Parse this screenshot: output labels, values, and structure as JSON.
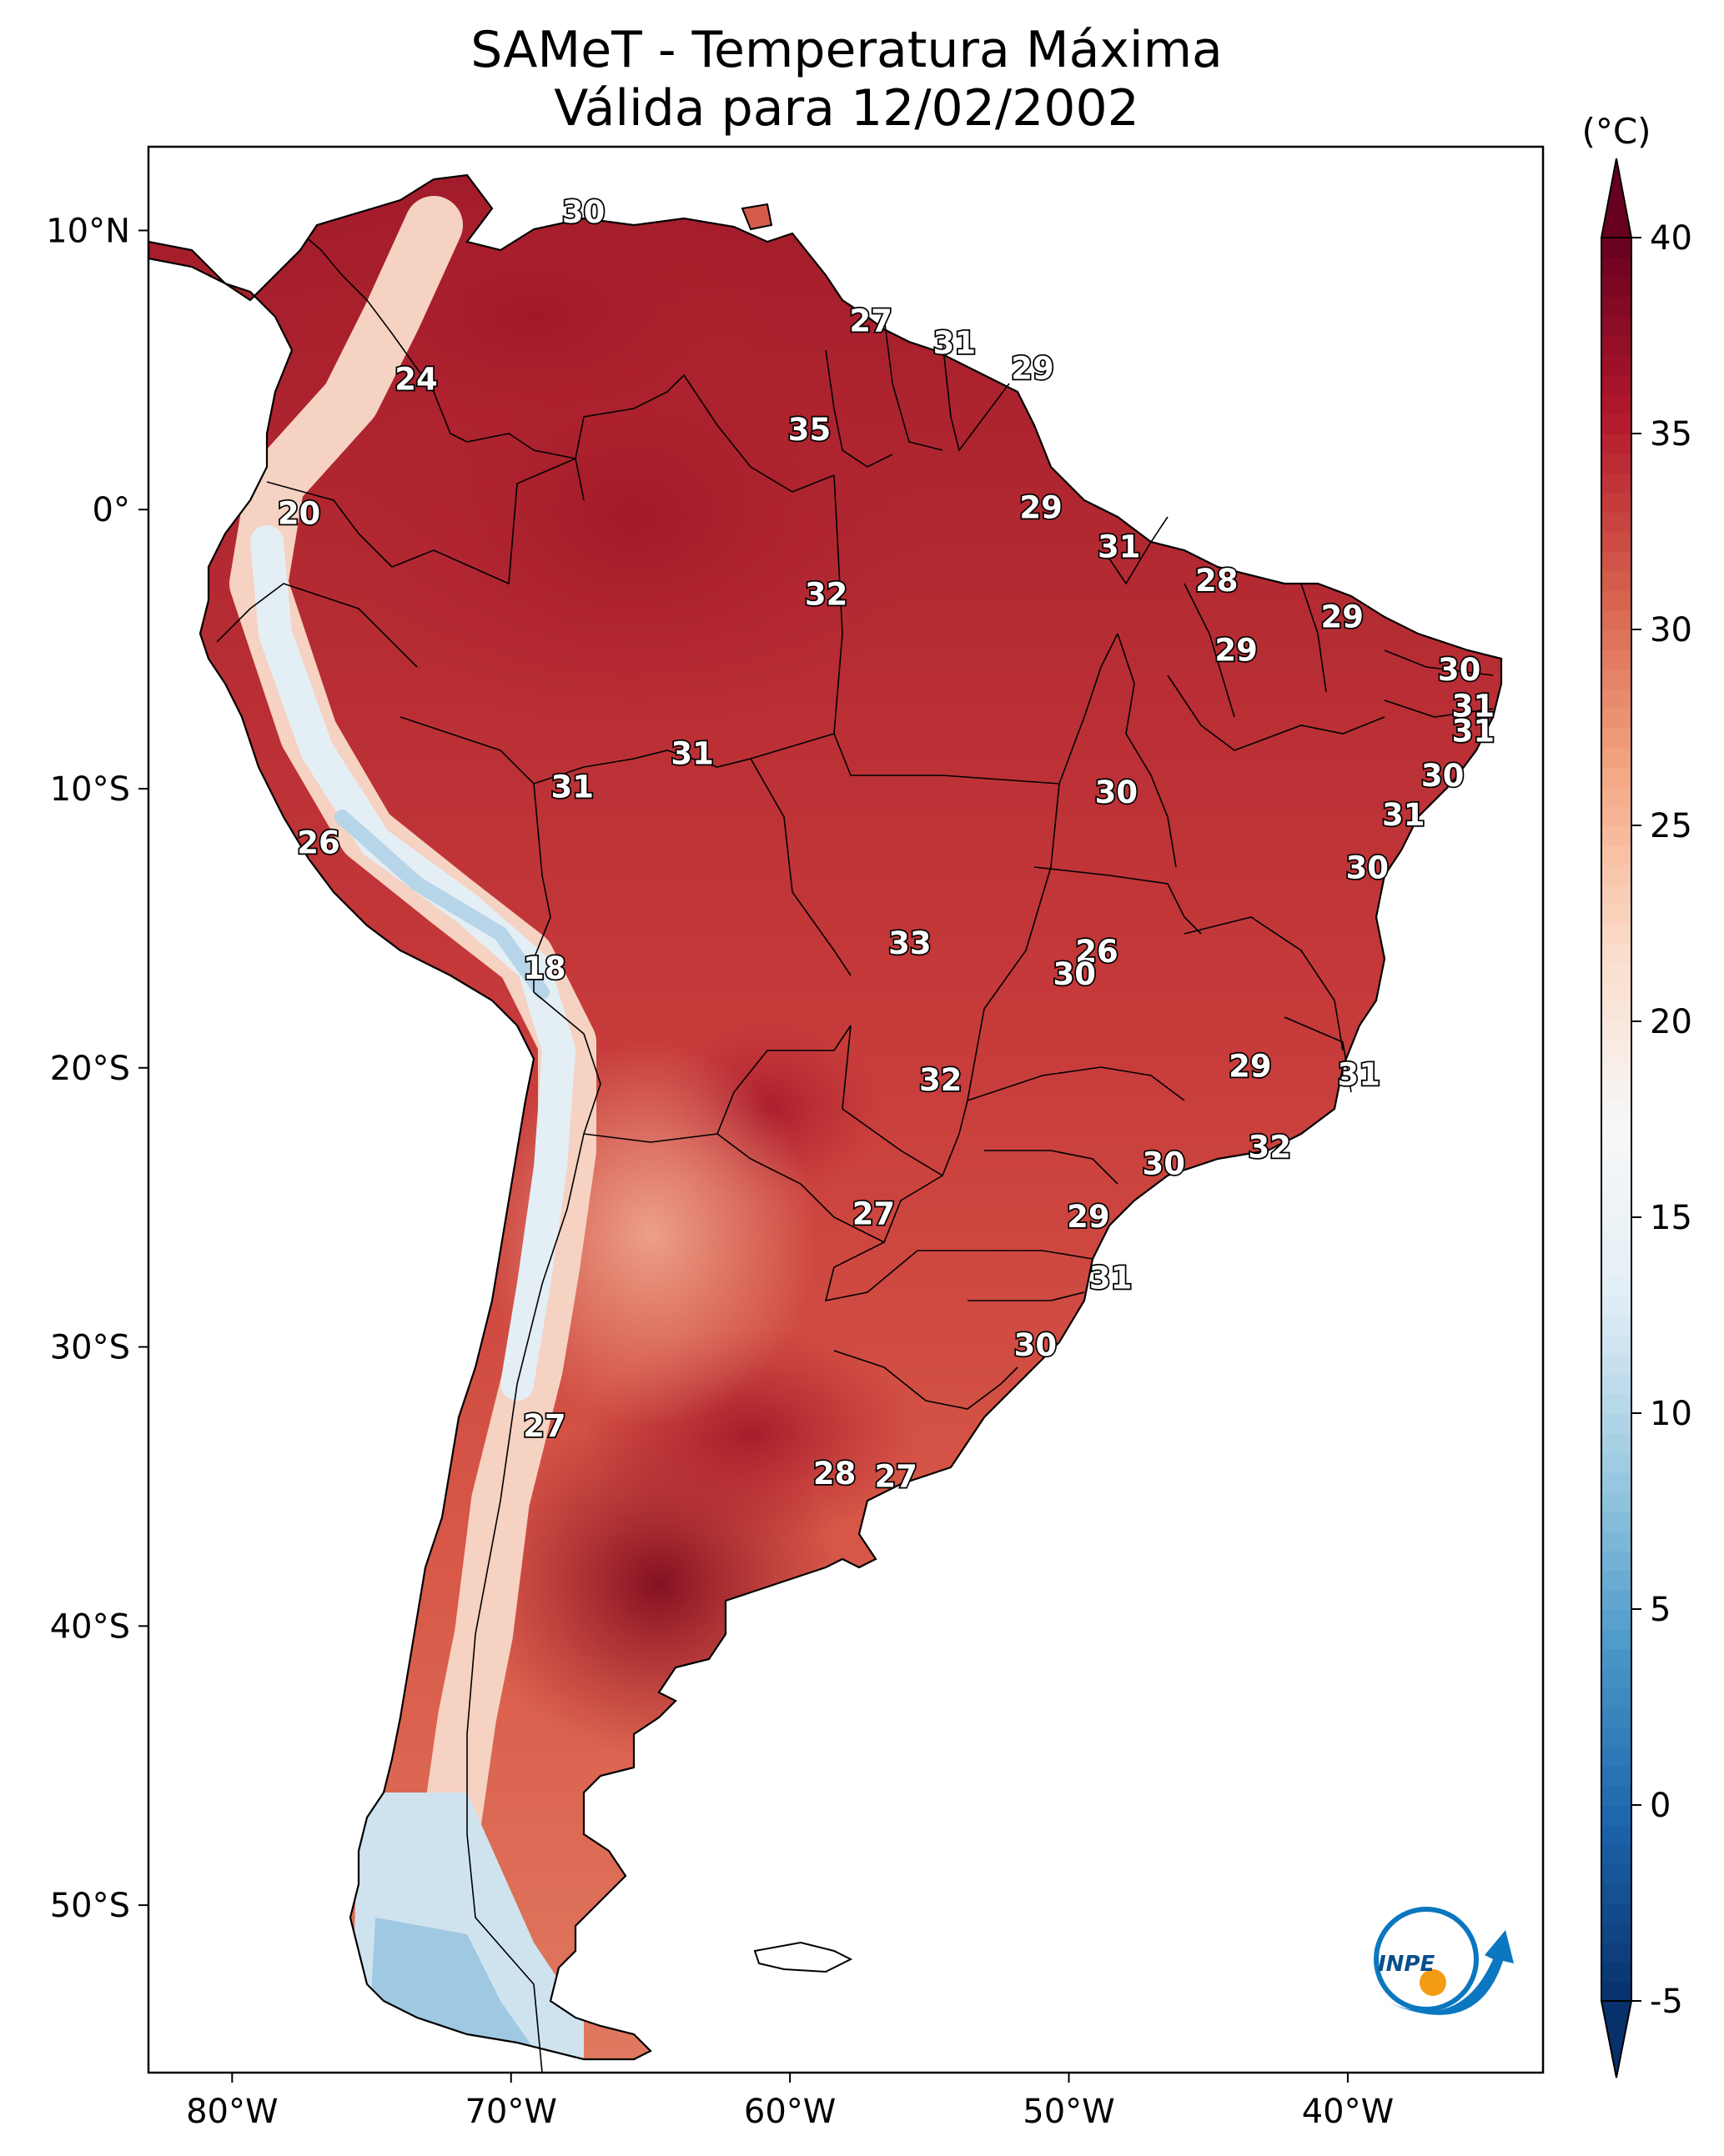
{
  "title": {
    "line1": "SAMeT - Temperatura Máxima",
    "line2": "Válida para 12/02/2002"
  },
  "map": {
    "lon_range": [
      -83,
      -33
    ],
    "lat_range": [
      -56,
      13
    ],
    "lon_ticks": [
      {
        "value": -80,
        "label": "80°W"
      },
      {
        "value": -70,
        "label": "70°W"
      },
      {
        "value": -60,
        "label": "60°W"
      },
      {
        "value": -50,
        "label": "50°W"
      },
      {
        "value": -40,
        "label": "40°W"
      }
    ],
    "lat_ticks": [
      {
        "value": 10,
        "label": "10°N"
      },
      {
        "value": 0,
        "label": "0°"
      },
      {
        "value": -10,
        "label": "10°S"
      },
      {
        "value": -20,
        "label": "20°S"
      },
      {
        "value": -30,
        "label": "30°S"
      },
      {
        "value": -40,
        "label": "40°S"
      },
      {
        "value": -50,
        "label": "50°S"
      }
    ],
    "station_labels": [
      {
        "lon": -67.4,
        "lat": 10.6,
        "text": "30"
      },
      {
        "lon": -57.1,
        "lat": 6.7,
        "text": "27"
      },
      {
        "lon": -54.1,
        "lat": 5.9,
        "text": "31"
      },
      {
        "lon": -51.3,
        "lat": 5.0,
        "text": "29"
      },
      {
        "lon": -73.4,
        "lat": 4.6,
        "text": "24"
      },
      {
        "lon": -59.3,
        "lat": 2.8,
        "text": "35"
      },
      {
        "lon": -77.6,
        "lat": -0.2,
        "text": "20"
      },
      {
        "lon": -51.0,
        "lat": 0.0,
        "text": "29"
      },
      {
        "lon": -48.2,
        "lat": -1.4,
        "text": "31"
      },
      {
        "lon": -44.7,
        "lat": -2.6,
        "text": "28"
      },
      {
        "lon": -58.7,
        "lat": -3.1,
        "text": "32"
      },
      {
        "lon": -40.2,
        "lat": -3.9,
        "text": "29"
      },
      {
        "lon": -44.0,
        "lat": -5.1,
        "text": "29"
      },
      {
        "lon": -36.0,
        "lat": -5.8,
        "text": "30"
      },
      {
        "lon": -35.5,
        "lat": -7.1,
        "text": "31"
      },
      {
        "lon": -35.5,
        "lat": -8.0,
        "text": "31"
      },
      {
        "lon": -63.5,
        "lat": -8.8,
        "text": "31"
      },
      {
        "lon": -36.6,
        "lat": -9.6,
        "text": "30"
      },
      {
        "lon": -67.8,
        "lat": -10.0,
        "text": "31"
      },
      {
        "lon": -48.3,
        "lat": -10.2,
        "text": "30"
      },
      {
        "lon": -38.0,
        "lat": -11.0,
        "text": "31"
      },
      {
        "lon": -76.9,
        "lat": -12.0,
        "text": "26"
      },
      {
        "lon": -39.3,
        "lat": -12.9,
        "text": "30"
      },
      {
        "lon": -49.0,
        "lat": -15.9,
        "text": "26"
      },
      {
        "lon": -55.7,
        "lat": -15.6,
        "text": "33"
      },
      {
        "lon": -49.8,
        "lat": -16.7,
        "text": "30"
      },
      {
        "lon": -68.8,
        "lat": -16.5,
        "text": "18"
      },
      {
        "lon": -43.5,
        "lat": -20.0,
        "text": "29"
      },
      {
        "lon": -39.6,
        "lat": -20.3,
        "text": "31"
      },
      {
        "lon": -54.6,
        "lat": -20.5,
        "text": "32"
      },
      {
        "lon": -42.8,
        "lat": -22.9,
        "text": "32"
      },
      {
        "lon": -46.6,
        "lat": -23.5,
        "text": "30"
      },
      {
        "lon": -57.0,
        "lat": -25.3,
        "text": "27"
      },
      {
        "lon": -49.3,
        "lat": -25.4,
        "text": "29"
      },
      {
        "lon": -48.5,
        "lat": -27.6,
        "text": "31"
      },
      {
        "lon": -51.2,
        "lat": -30.0,
        "text": "30"
      },
      {
        "lon": -68.8,
        "lat": -32.9,
        "text": "27"
      },
      {
        "lon": -58.4,
        "lat": -34.6,
        "text": "28"
      },
      {
        "lon": -56.2,
        "lat": -34.7,
        "text": "27"
      }
    ]
  },
  "colorbar": {
    "unit": "(°C)",
    "min": -5,
    "max": 40,
    "ticks": [
      {
        "value": 40,
        "label": "40"
      },
      {
        "value": 35,
        "label": "35"
      },
      {
        "value": 30,
        "label": "30"
      },
      {
        "value": 25,
        "label": "25"
      },
      {
        "value": 20,
        "label": "20"
      },
      {
        "value": 15,
        "label": "15"
      },
      {
        "value": 10,
        "label": "10"
      },
      {
        "value": 5,
        "label": "5"
      },
      {
        "value": 0,
        "label": "0"
      },
      {
        "value": -5,
        "label": "-5"
      }
    ],
    "colors": [
      "#08306b",
      "#1c64ab",
      "#4a98c9",
      "#9ccae1",
      "#e2eef6",
      "#f7f7f7",
      "#fbdbc8",
      "#f4a582",
      "#d6604d",
      "#b2182b",
      "#67001f"
    ]
  },
  "logo": {
    "text": "INPE",
    "blue": "#0b77c0",
    "orange": "#f39c12"
  }
}
